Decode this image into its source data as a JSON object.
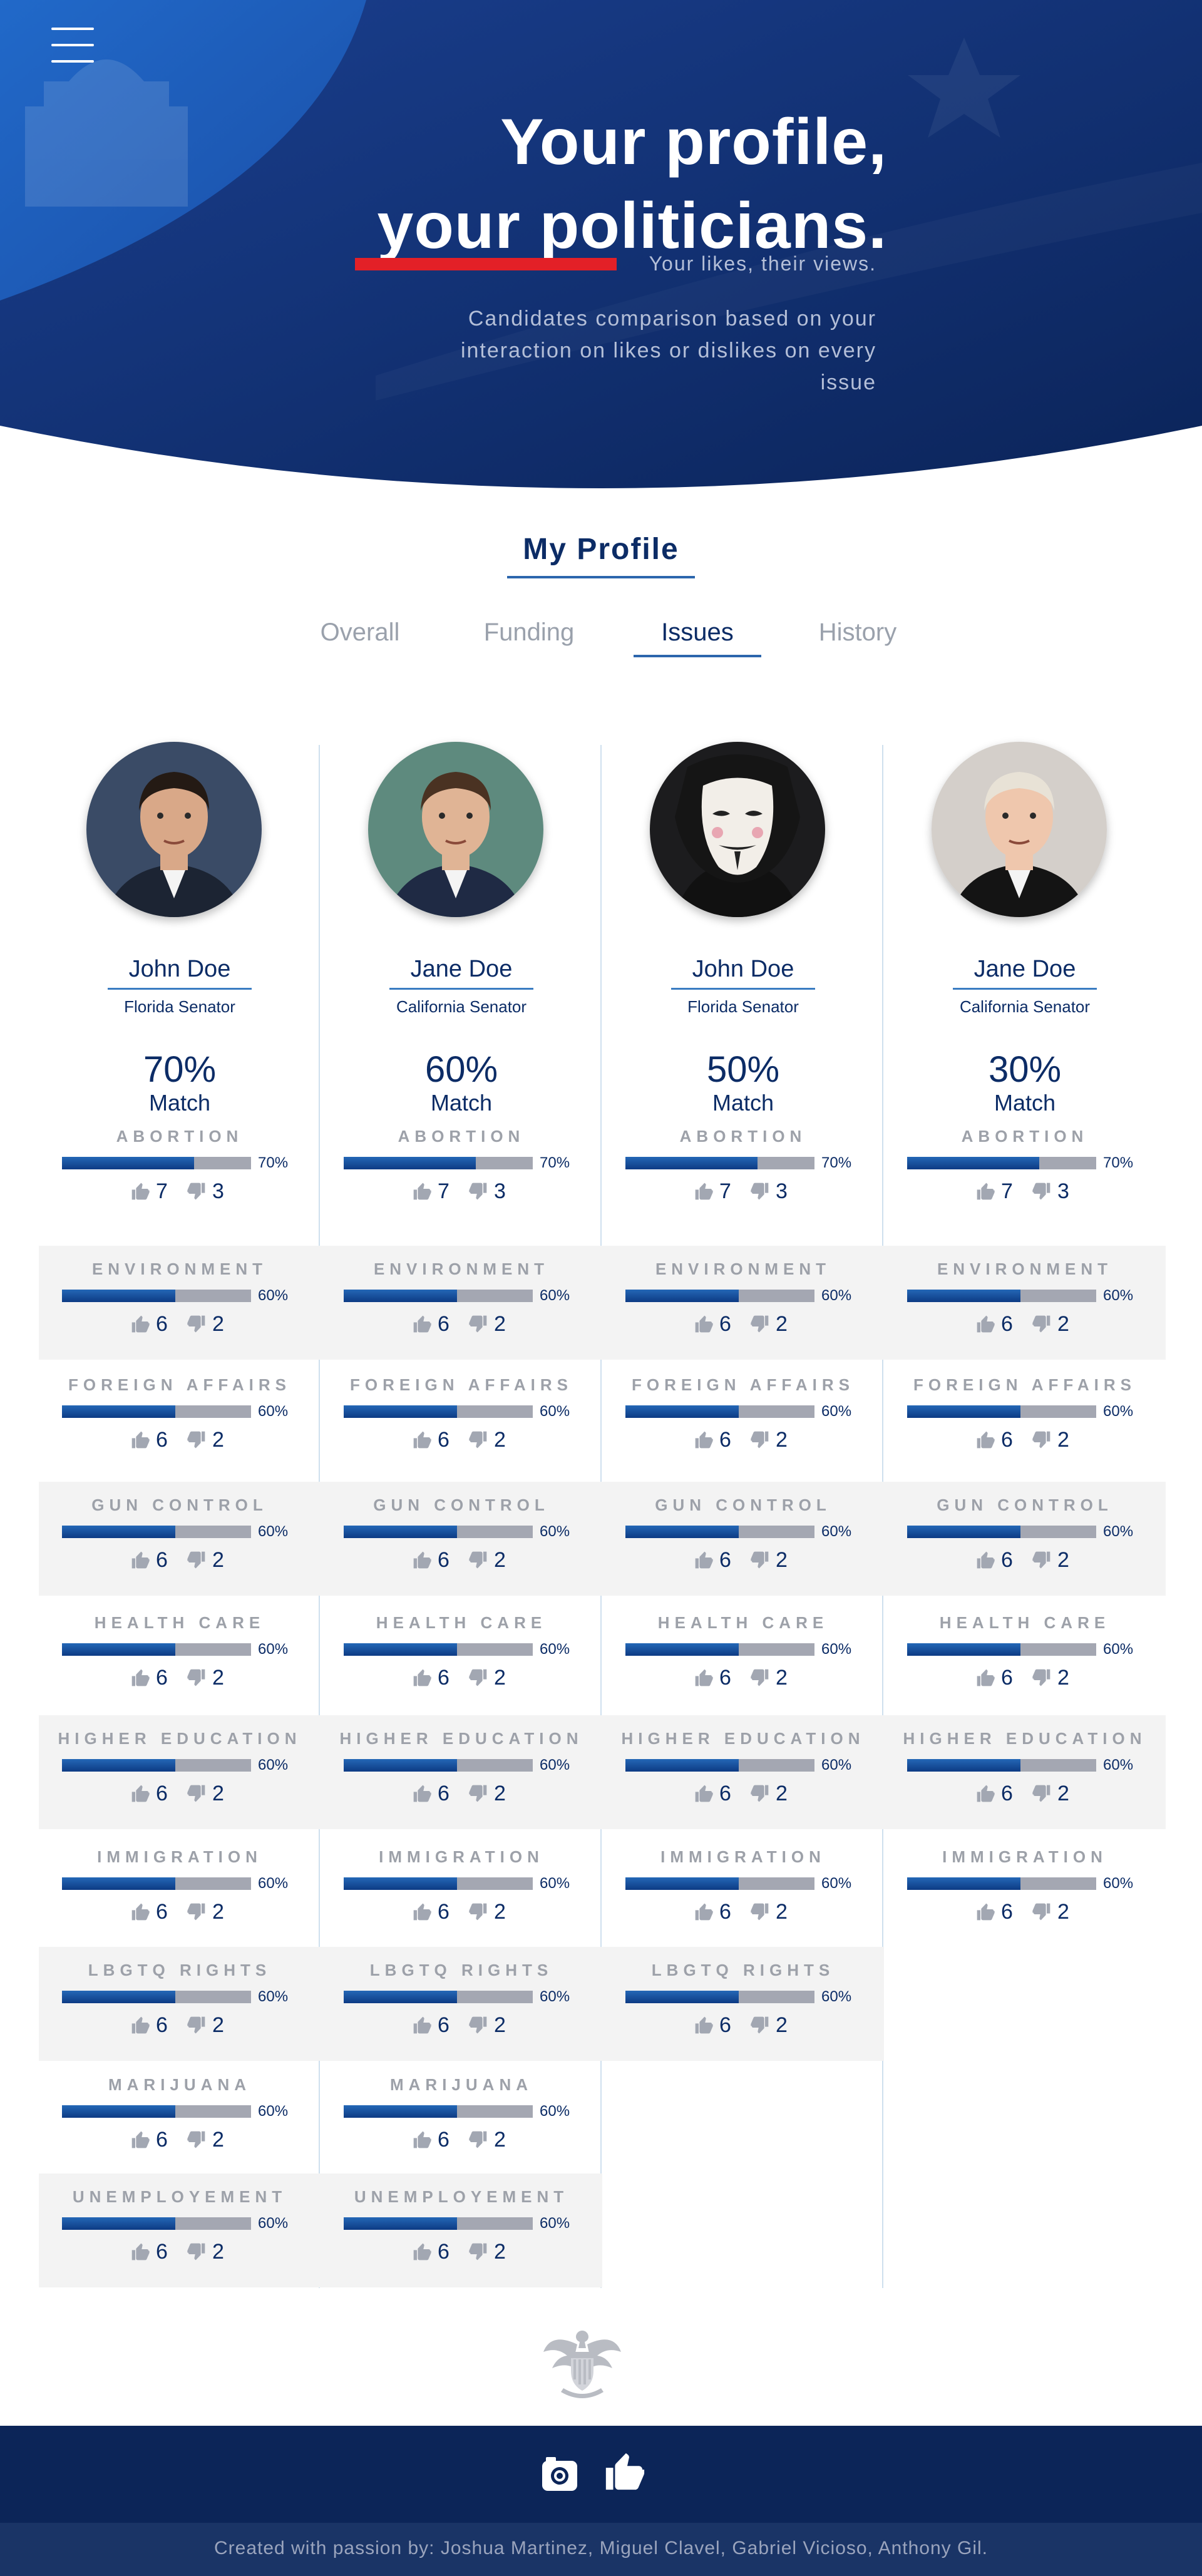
{
  "hero": {
    "title_line1": "Your profile,",
    "title_line2": "your politicians.",
    "tagline": "Your likes, their views.",
    "description": "Candidates comparison based on your interaction on likes or dislikes on every issue"
  },
  "profile": {
    "title": "My Profile",
    "tabs": [
      {
        "label": "Overall"
      },
      {
        "label": "Funding"
      },
      {
        "label": "Issues",
        "active": true
      },
      {
        "label": "History"
      }
    ]
  },
  "colors": {
    "navy": "#0c2c66",
    "accent_red": "#e32027",
    "bar_blue": "#1b56a4",
    "bar_grey": "#a4a7b2"
  },
  "candidates": [
    {
      "name": "John Doe",
      "role": "Florida Senator",
      "match_pct": "70%",
      "match_label": "Match",
      "photo_icon": "candidate-photo",
      "issues": [
        {
          "name": "ABORTION",
          "pct": 70,
          "pct_label": "70%",
          "likes": "7",
          "dislikes": "3"
        },
        {
          "name": "ENVIRONMENT",
          "pct": 60,
          "pct_label": "60%",
          "likes": "6",
          "dislikes": "2"
        },
        {
          "name": "FOREIGN AFFAIRS",
          "pct": 60,
          "pct_label": "60%",
          "likes": "6",
          "dislikes": "2"
        },
        {
          "name": "GUN CONTROL",
          "pct": 60,
          "pct_label": "60%",
          "likes": "6",
          "dislikes": "2"
        },
        {
          "name": "HEALTH CARE",
          "pct": 60,
          "pct_label": "60%",
          "likes": "6",
          "dislikes": "2"
        },
        {
          "name": "HIGHER EDUCATION",
          "pct": 60,
          "pct_label": "60%",
          "likes": "6",
          "dislikes": "2"
        },
        {
          "name": "IMMIGRATION",
          "pct": 60,
          "pct_label": "60%",
          "likes": "6",
          "dislikes": "2"
        },
        {
          "name": "LBGTQ RIGHTS",
          "pct": 60,
          "pct_label": "60%",
          "likes": "6",
          "dislikes": "2"
        },
        {
          "name": "MARIJUANA",
          "pct": 60,
          "pct_label": "60%",
          "likes": "6",
          "dislikes": "2"
        },
        {
          "name": "UNEMPLOYEMENT",
          "pct": 60,
          "pct_label": "60%",
          "likes": "6",
          "dislikes": "2"
        }
      ]
    },
    {
      "name": "Jane Doe",
      "role": "California Senator",
      "match_pct": "60%",
      "match_label": "Match",
      "photo_icon": "candidate-photo",
      "issues": [
        {
          "name": "ABORTION",
          "pct": 70,
          "pct_label": "70%",
          "likes": "7",
          "dislikes": "3"
        },
        {
          "name": "ENVIRONMENT",
          "pct": 60,
          "pct_label": "60%",
          "likes": "6",
          "dislikes": "2"
        },
        {
          "name": "FOREIGN AFFAIRS",
          "pct": 60,
          "pct_label": "60%",
          "likes": "6",
          "dislikes": "2"
        },
        {
          "name": "GUN CONTROL",
          "pct": 60,
          "pct_label": "60%",
          "likes": "6",
          "dislikes": "2"
        },
        {
          "name": "HEALTH CARE",
          "pct": 60,
          "pct_label": "60%",
          "likes": "6",
          "dislikes": "2"
        },
        {
          "name": "HIGHER EDUCATION",
          "pct": 60,
          "pct_label": "60%",
          "likes": "6",
          "dislikes": "2"
        },
        {
          "name": "IMMIGRATION",
          "pct": 60,
          "pct_label": "60%",
          "likes": "6",
          "dislikes": "2"
        },
        {
          "name": "LBGTQ RIGHTS",
          "pct": 60,
          "pct_label": "60%",
          "likes": "6",
          "dislikes": "2"
        },
        {
          "name": "MARIJUANA",
          "pct": 60,
          "pct_label": "60%",
          "likes": "6",
          "dislikes": "2"
        },
        {
          "name": "UNEMPLOYEMENT",
          "pct": 60,
          "pct_label": "60%",
          "likes": "6",
          "dislikes": "2"
        }
      ]
    },
    {
      "name": "John Doe",
      "role": "Florida Senator",
      "match_pct": "50%",
      "match_label": "Match",
      "photo_icon": "mask-photo",
      "issues": [
        {
          "name": "ABORTION",
          "pct": 70,
          "pct_label": "70%",
          "likes": "7",
          "dislikes": "3"
        },
        {
          "name": "ENVIRONMENT",
          "pct": 60,
          "pct_label": "60%",
          "likes": "6",
          "dislikes": "2"
        },
        {
          "name": "FOREIGN AFFAIRS",
          "pct": 60,
          "pct_label": "60%",
          "likes": "6",
          "dislikes": "2"
        },
        {
          "name": "GUN CONTROL",
          "pct": 60,
          "pct_label": "60%",
          "likes": "6",
          "dislikes": "2"
        },
        {
          "name": "HEALTH CARE",
          "pct": 60,
          "pct_label": "60%",
          "likes": "6",
          "dislikes": "2"
        },
        {
          "name": "HIGHER EDUCATION",
          "pct": 60,
          "pct_label": "60%",
          "likes": "6",
          "dislikes": "2"
        },
        {
          "name": "IMMIGRATION",
          "pct": 60,
          "pct_label": "60%",
          "likes": "6",
          "dislikes": "2"
        },
        {
          "name": "LBGTQ RIGHTS",
          "pct": 60,
          "pct_label": "60%",
          "likes": "6",
          "dislikes": "2"
        }
      ]
    },
    {
      "name": "Jane Doe",
      "role": "California Senator",
      "match_pct": "30%",
      "match_label": "Match",
      "photo_icon": "candidate-photo",
      "issues": [
        {
          "name": "ABORTION",
          "pct": 70,
          "pct_label": "70%",
          "likes": "7",
          "dislikes": "3"
        },
        {
          "name": "ENVIRONMENT",
          "pct": 60,
          "pct_label": "60%",
          "likes": "6",
          "dislikes": "2"
        },
        {
          "name": "FOREIGN AFFAIRS",
          "pct": 60,
          "pct_label": "60%",
          "likes": "6",
          "dislikes": "2"
        },
        {
          "name": "GUN CONTROL",
          "pct": 60,
          "pct_label": "60%",
          "likes": "6",
          "dislikes": "2"
        },
        {
          "name": "HEALTH CARE",
          "pct": 60,
          "pct_label": "60%",
          "likes": "6",
          "dislikes": "2"
        },
        {
          "name": "HIGHER EDUCATION",
          "pct": 60,
          "pct_label": "60%",
          "likes": "6",
          "dislikes": "2"
        },
        {
          "name": "IMMIGRATION",
          "pct": 60,
          "pct_label": "60%",
          "likes": "6",
          "dislikes": "2"
        }
      ]
    }
  ],
  "footer": {
    "social_icons": [
      "instagram-icon",
      "facebook-like-icon"
    ],
    "emblem_icon": "presidential-seal-icon",
    "credit": "Created with passion by: Joshua Martinez, Miguel Clavel, Gabriel Vicioso, Anthony Gil."
  }
}
